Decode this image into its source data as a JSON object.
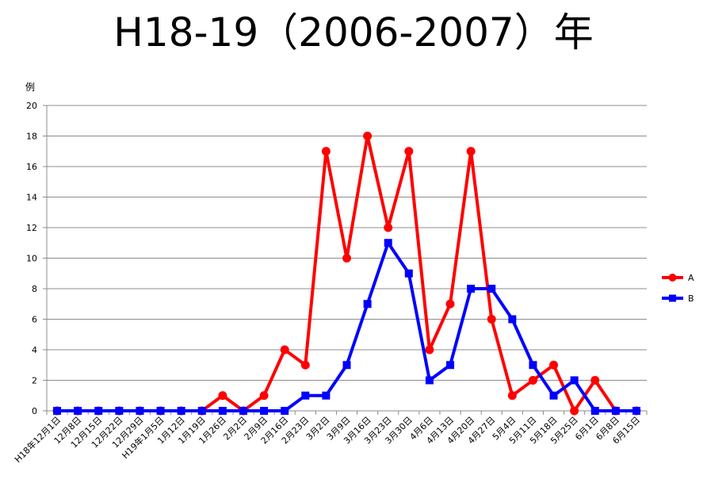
{
  "chart_data": {
    "type": "line",
    "title": "H18-19（2006-2007）年",
    "ylabel": "例",
    "xlabel": "",
    "ylim": [
      0,
      20
    ],
    "ytick_step": 2,
    "grid": true,
    "legend_position": "right",
    "categories": [
      "H18年12月1日",
      "12月8日",
      "12月15日",
      "12月22日",
      "12月29日",
      "H19年1月5日",
      "1月12日",
      "1月19日",
      "1月26日",
      "2月2日",
      "2月9日",
      "2月16日",
      "2月23日",
      "3月2日",
      "3月9日",
      "3月16日",
      "3月23日",
      "3月30日",
      "4月6日",
      "4月13日",
      "4月20日",
      "4月27日",
      "5月4日",
      "5月11日",
      "5月18日",
      "5月25日",
      "6月1日",
      "6月8日",
      "6月15日"
    ],
    "series": [
      {
        "name": "A",
        "color": "#ff0000",
        "marker": "circle",
        "values": [
          0,
          0,
          0,
          0,
          0,
          0,
          0,
          0,
          1,
          0,
          1,
          4,
          3,
          17,
          10,
          18,
          12,
          17,
          4,
          7,
          17,
          6,
          1,
          2,
          3,
          0,
          2,
          0,
          0
        ]
      },
      {
        "name": "B",
        "color": "#0000ff",
        "marker": "square",
        "values": [
          0,
          0,
          0,
          0,
          0,
          0,
          0,
          0,
          0,
          0,
          0,
          0,
          1,
          1,
          3,
          7,
          11,
          9,
          2,
          3,
          8,
          8,
          6,
          3,
          1,
          2,
          0,
          0,
          0
        ]
      }
    ]
  }
}
